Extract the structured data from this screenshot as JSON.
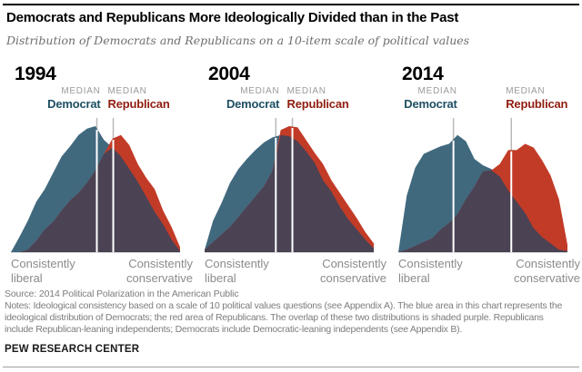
{
  "header": {
    "title": "Democrats and Republicans More Ideologically Divided than in the Past",
    "subtitle": "Distribution of Democrats and Republicans on a 10-item scale of political values"
  },
  "labels": {
    "median": "MEDIAN",
    "democrat": "Democrat",
    "republican": "Republican",
    "left_axis": "Consistently liberal",
    "right_axis": "Consistently conservative"
  },
  "colors": {
    "democrat_fill": "#41697e",
    "republican_fill": "#c23b27",
    "overlap_fill": "#4b4254",
    "democrat_label": "#1e4f63",
    "republican_label": "#901d10",
    "median_gray_line": "#b9b9b9",
    "median_white_line": "#ffffff",
    "baseline": "#c8c8c8"
  },
  "chart_data": {
    "type": "area",
    "title": "Democrats and Republicans More Ideologically Divided than in the Past",
    "subtitle": "Distribution of Democrats and Republicans on a 10-item scale of political values",
    "x_axis": "ideological consistency, from consistently liberal (left) to consistently conservative (right)",
    "x_units": "percent of axis span, 21 evenly spaced sample points (0-100)",
    "y_units": "relative share of party, 0-100 of panel maximum",
    "legend": [
      "Democrat distribution (blue)",
      "Republican distribution (red)",
      "overlap (purple)"
    ],
    "panels": [
      {
        "year": "1994",
        "dem": [
          0,
          12,
          25,
          40,
          50,
          63,
          76,
          84,
          93,
          98,
          100,
          89,
          83,
          76,
          66,
          56,
          44,
          32,
          22,
          10,
          1
        ],
        "rep": [
          0,
          0,
          2,
          9,
          18,
          24,
          33,
          41,
          47,
          55,
          65,
          78,
          90,
          93,
          85,
          70,
          59,
          50,
          33,
          20,
          4
        ],
        "median_democrat_pct": 50.8,
        "median_republican_pct": 60.5
      },
      {
        "year": "2004",
        "dem": [
          2,
          25,
          39,
          55,
          66,
          74,
          81,
          87,
          91,
          93,
          92,
          88,
          80,
          71,
          57,
          48,
          36,
          26,
          18,
          10,
          3
        ],
        "rep": [
          2,
          8,
          14,
          20,
          28,
          36,
          44,
          52,
          64,
          97,
          100,
          99,
          89,
          79,
          70,
          57,
          47,
          37,
          27,
          16,
          7
        ],
        "median_democrat_pct": 42.1,
        "median_republican_pct": 51.9
      },
      {
        "year": "2014",
        "dem": [
          0,
          45,
          67,
          78,
          81,
          84,
          86,
          93,
          88,
          74,
          69,
          66,
          60,
          49,
          40,
          31,
          19,
          12,
          7,
          2,
          1
        ],
        "rep": [
          0,
          2,
          5,
          8,
          11,
          18,
          23,
          30,
          42,
          52,
          64,
          65,
          70,
          81,
          81,
          86,
          83,
          73,
          61,
          42,
          6
        ],
        "median_democrat_pct": 32.6,
        "median_republican_pct": 66.8
      }
    ]
  },
  "footer": {
    "source": "Source: 2014 Political Polarization in the American Public",
    "notes_lines": [
      "Notes: Ideological consistency based on a scale of 10 political values questions (see Appendix A). The blue area in this chart represents the",
      "ideological distribution of Democrats; the red area of Republicans. The overlap of these two distributions is shaded purple. Republicans",
      "include Republican-leaning independents; Democrats include Democratic-leaning independents (see Appendix B)."
    ],
    "brand": "PEW RESEARCH CENTER"
  }
}
